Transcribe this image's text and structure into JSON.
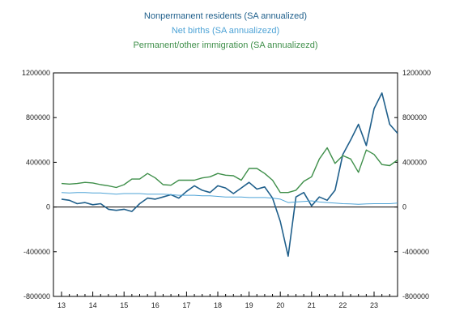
{
  "chart_data": {
    "type": "line",
    "title": "",
    "xlabel": "",
    "ylabel": "",
    "x_tick_labels": [
      "13",
      "14",
      "15",
      "16",
      "17",
      "18",
      "19",
      "20",
      "21",
      "22",
      "23"
    ],
    "x_range": [
      2013.0,
      2023.75
    ],
    "ylim": [
      -800000,
      1200000
    ],
    "y_ticks": [
      -800000,
      -400000,
      0,
      400000,
      800000,
      1200000
    ],
    "left_y_tick_labels": [
      "-800000",
      "-400000",
      "0",
      "400000",
      "800000",
      "1200000"
    ],
    "right_y_tick_labels": [
      "-800000",
      "-400000",
      "0",
      "400000",
      "800000",
      "1200000"
    ],
    "legend_position": "top-center",
    "grid": false,
    "zero_line": true,
    "series": [
      {
        "name": "Nonpermanent residents (SA annualized)",
        "color": "#1f5f8b",
        "x": [
          2013.0,
          2013.25,
          2013.5,
          2013.75,
          2014.0,
          2014.25,
          2014.5,
          2014.75,
          2015.0,
          2015.25,
          2015.5,
          2015.75,
          2016.0,
          2016.25,
          2016.5,
          2016.75,
          2017.0,
          2017.25,
          2017.5,
          2017.75,
          2018.0,
          2018.25,
          2018.5,
          2018.75,
          2019.0,
          2019.25,
          2019.5,
          2019.75,
          2020.0,
          2020.25,
          2020.5,
          2020.75,
          2021.0,
          2021.25,
          2021.5,
          2021.75,
          2022.0,
          2022.25,
          2022.5,
          2022.75,
          2023.0,
          2023.25,
          2023.5,
          2023.75
        ],
        "values": [
          70000,
          60000,
          30000,
          40000,
          20000,
          30000,
          -20000,
          -30000,
          -20000,
          -40000,
          30000,
          80000,
          70000,
          90000,
          110000,
          80000,
          140000,
          190000,
          150000,
          130000,
          190000,
          170000,
          120000,
          170000,
          220000,
          160000,
          180000,
          80000,
          -130000,
          -440000,
          90000,
          130000,
          10000,
          90000,
          60000,
          150000,
          470000,
          600000,
          740000,
          550000,
          880000,
          1020000,
          740000,
          660000
        ]
      },
      {
        "name": "Net births (SA annualizezd)",
        "color": "#4ea3d6",
        "x": [
          2013.0,
          2013.25,
          2013.5,
          2013.75,
          2014.0,
          2014.25,
          2014.5,
          2014.75,
          2015.0,
          2015.25,
          2015.5,
          2015.75,
          2016.0,
          2016.25,
          2016.5,
          2016.75,
          2017.0,
          2017.25,
          2017.5,
          2017.75,
          2018.0,
          2018.25,
          2018.5,
          2018.75,
          2019.0,
          2019.25,
          2019.5,
          2019.75,
          2020.0,
          2020.25,
          2020.5,
          2020.75,
          2021.0,
          2021.25,
          2021.5,
          2021.75,
          2022.0,
          2022.25,
          2022.5,
          2022.75,
          2023.0,
          2023.25,
          2023.5,
          2023.75
        ],
        "values": [
          130000,
          125000,
          130000,
          130000,
          125000,
          125000,
          120000,
          115000,
          120000,
          120000,
          120000,
          115000,
          115000,
          115000,
          110000,
          105000,
          105000,
          105000,
          100000,
          100000,
          95000,
          90000,
          90000,
          90000,
          85000,
          85000,
          85000,
          80000,
          70000,
          40000,
          45000,
          50000,
          55000,
          45000,
          40000,
          35000,
          30000,
          28000,
          25000,
          28000,
          30000,
          30000,
          30000,
          35000
        ]
      },
      {
        "name": "Permanent/other immigration (SA annualizezd)",
        "color": "#3f8f4a",
        "x": [
          2013.0,
          2013.25,
          2013.5,
          2013.75,
          2014.0,
          2014.25,
          2014.5,
          2014.75,
          2015.0,
          2015.25,
          2015.5,
          2015.75,
          2016.0,
          2016.25,
          2016.5,
          2016.75,
          2017.0,
          2017.25,
          2017.5,
          2017.75,
          2018.0,
          2018.25,
          2018.5,
          2018.75,
          2019.0,
          2019.25,
          2019.5,
          2019.75,
          2020.0,
          2020.25,
          2020.5,
          2020.75,
          2021.0,
          2021.25,
          2021.5,
          2021.75,
          2022.0,
          2022.25,
          2022.5,
          2022.75,
          2023.0,
          2023.25,
          2023.5,
          2023.75
        ],
        "values": [
          210000,
          205000,
          210000,
          220000,
          215000,
          200000,
          190000,
          175000,
          200000,
          250000,
          250000,
          300000,
          260000,
          200000,
          195000,
          240000,
          240000,
          240000,
          260000,
          270000,
          300000,
          285000,
          280000,
          240000,
          345000,
          345000,
          300000,
          240000,
          130000,
          130000,
          150000,
          230000,
          270000,
          430000,
          530000,
          390000,
          460000,
          430000,
          310000,
          510000,
          470000,
          380000,
          370000,
          420000
        ]
      }
    ]
  }
}
